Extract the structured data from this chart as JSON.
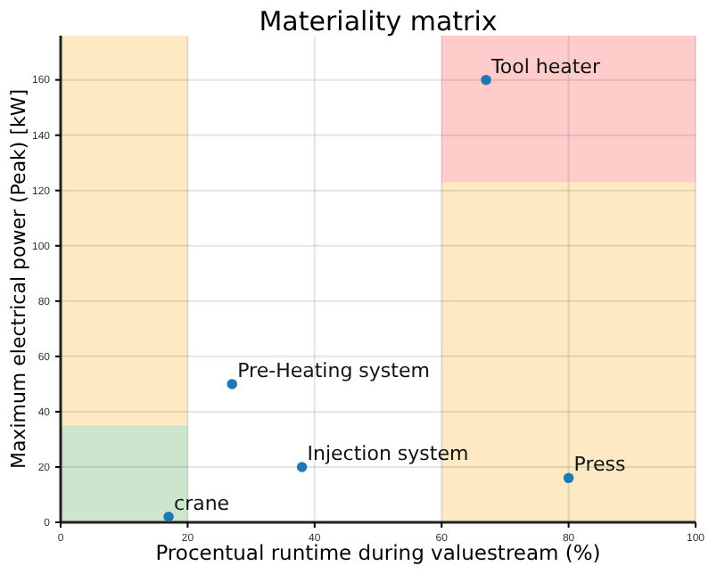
{
  "chart_data": {
    "type": "scatter",
    "title": "Materiality matrix",
    "xlabel": "Procentual runtime during valuestream (%)",
    "ylabel": "Maximum electrical power (Peak) [kW]",
    "x": [
      17,
      27,
      38,
      80,
      67
    ],
    "series": [
      {
        "color": "#1f77b4",
        "values": [
          2,
          50,
          20,
          16,
          160
        ]
      }
    ],
    "annotations": [
      {
        "text": "crane",
        "x": 17,
        "y": 2
      },
      {
        "text": "Pre-Heating system",
        "x": 27,
        "y": 50
      },
      {
        "text": "Injection system",
        "x": 38,
        "y": 20
      },
      {
        "text": "Press",
        "x": 80,
        "y": 16
      },
      {
        "text": "Tool heater",
        "x": 67,
        "y": 160
      }
    ],
    "bands": [
      {
        "axis": "x",
        "from": 0,
        "to": 20,
        "color": "#fde9c4"
      },
      {
        "axis": "y",
        "from": 0,
        "to": 35,
        "color": "#cce5cc"
      },
      {
        "axis": "x",
        "from": 60,
        "to": 100,
        "color": "#fde9c4"
      },
      {
        "axis": "y",
        "from": 123,
        "to": 176,
        "color": "#ffcccc"
      }
    ],
    "xlim": [
      0,
      100
    ],
    "ylim": [
      0,
      176
    ],
    "xticks": [
      0,
      20,
      40,
      60,
      80,
      100
    ],
    "yticks": [
      0,
      20,
      40,
      60,
      80,
      100,
      120,
      140,
      160
    ],
    "grid": true,
    "marker": "circle"
  }
}
